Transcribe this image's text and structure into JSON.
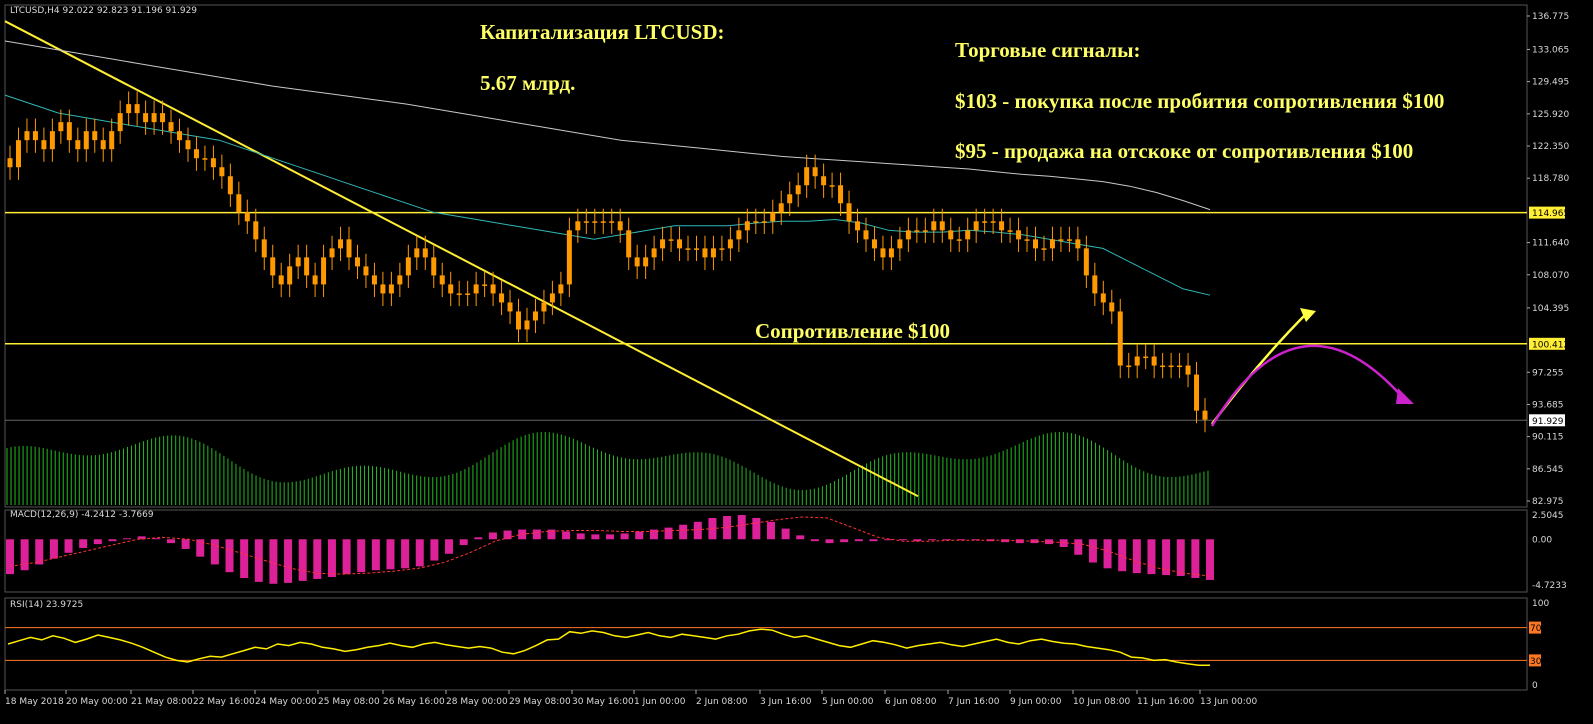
{
  "symbol_header": "LTCUSD,H4  92.022 92.823 91.196 91.929",
  "macd_header": "MACD(12,26,9) -4.2412 -3.7669",
  "rsi_header": "RSI(14) 23.9725",
  "annotations": {
    "cap_title": "Капитализация LTCUSD:",
    "cap_value": "5.67 млрд.",
    "signals_title": "Торговые сигналы:",
    "signal_buy": "$103 -  покупка после пробития сопротивления $100",
    "signal_sell": "$95 - продажа на отскоке от сопротивления $100",
    "resistance_label": "Сопротивление $100"
  },
  "colors": {
    "background": "#000000",
    "candle": "#ff9900",
    "volume": "#22bb22",
    "ma_fast": "#2fb8b8",
    "ma_slow": "#c8c8c8",
    "level_line": "#ffee33",
    "trendline": "#ffee33",
    "macd_hist": "#dd2299",
    "macd_signal": "#ff3333",
    "rsi_line": "#ffee00",
    "rsi_levels": "#ff7722",
    "arrow_up": "#ffff44",
    "arrow_down": "#cc22cc",
    "grid": "#333333"
  },
  "chart_data": [
    {
      "type": "candlestick",
      "title": "LTCUSD,H4",
      "header_ohlc": {
        "open": 92.022,
        "high": 92.823,
        "low": 91.196,
        "close": 91.929
      },
      "y_ticks": [
        "136.775",
        "133.065",
        "129.495",
        "125.920",
        "122.350",
        "118.780",
        "114.965",
        "111.640",
        "108.070",
        "104.395",
        "100.412",
        "97.255",
        "93.685",
        "91.929",
        "90.115",
        "86.545",
        "82.975"
      ],
      "ylim": [
        82.975,
        136.775
      ],
      "x_ticks": [
        "18 May 2018",
        "20 May 00:00",
        "21 May 08:00",
        "22 May 16:00",
        "24 May 00:00",
        "25 May 08:00",
        "26 May 16:00",
        "28 May 00:00",
        "29 May 08:00",
        "30 May 16:00",
        "1 Jun 00:00",
        "2 Jun 08:00",
        "3 Jun 16:00",
        "5 Jun 00:00",
        "6 Jun 08:00",
        "7 Jun 16:00",
        "9 Jun 00:00",
        "10 Jun 08:00",
        "11 Jun 16:00",
        "13 Jun 00:00"
      ],
      "close_series": [
        120,
        123,
        124,
        123,
        122,
        124,
        125,
        123,
        122,
        124,
        123,
        122,
        124,
        126,
        127,
        126,
        125,
        126,
        125,
        124,
        123,
        122,
        121,
        121,
        120,
        119,
        117,
        115,
        114,
        112,
        110,
        108,
        107,
        109,
        110,
        108,
        107,
        110,
        111,
        112,
        110,
        109,
        108,
        107,
        106,
        107,
        108,
        110,
        111,
        110,
        108,
        107,
        106,
        106,
        106,
        107,
        107,
        106,
        105,
        104,
        102,
        103,
        104,
        105,
        106,
        107,
        113,
        114,
        114,
        114,
        114,
        114,
        113,
        110,
        109,
        110,
        111,
        112,
        112,
        111,
        111,
        111,
        110,
        111,
        111,
        112,
        113,
        114,
        114,
        114,
        115,
        116,
        117,
        118,
        120,
        119,
        118,
        118,
        116,
        114,
        113,
        112,
        111,
        110,
        111,
        112,
        113,
        113,
        113,
        114,
        113,
        112,
        112,
        113,
        114,
        114,
        114,
        113,
        113,
        112,
        112,
        111,
        111,
        112,
        112,
        112,
        111,
        108,
        106,
        105,
        104,
        98,
        98,
        99,
        99,
        98,
        98,
        98,
        98,
        97,
        93,
        92
      ],
      "ma_fast_series": [
        128,
        127,
        126,
        125.5,
        125,
        124.5,
        124,
        123.5,
        123,
        122,
        121,
        120,
        119,
        118,
        117,
        116,
        115,
        114.5,
        114,
        113.5,
        113,
        112.5,
        112,
        112.5,
        113,
        113.5,
        113.5,
        113.5,
        113.8,
        114,
        114,
        114.2,
        113.8,
        113,
        112.8,
        112.8,
        113,
        112.8,
        112.5,
        112,
        111.5,
        111,
        109.5,
        108,
        106.5,
        105.8
      ],
      "ma_slow_series": [
        134,
        133.5,
        133,
        132.5,
        132,
        131.5,
        131,
        130.5,
        130,
        129.5,
        129,
        128.6,
        128.2,
        127.8,
        127.4,
        127,
        126.5,
        126,
        125.5,
        125,
        124.5,
        124,
        123.5,
        123,
        122.7,
        122.4,
        122.1,
        121.8,
        121.5,
        121.2,
        121,
        120.8,
        120.6,
        120.4,
        120.2,
        120,
        119.8,
        119.5,
        119.2,
        119,
        118.7,
        118.4,
        117.9,
        117.2,
        116.3,
        115.3
      ],
      "horizontal_levels": [
        114.965,
        100.412
      ],
      "price_badges": [
        "114.965",
        "100.412",
        "91.929"
      ],
      "trendline": {
        "from": {
          "x": "18 May 2018",
          "y": 136.2
        },
        "to": {
          "x": "5 Jun 00:00",
          "y": 83.5
        }
      }
    },
    {
      "type": "bar",
      "title": "MACD(12,26,9)",
      "values_header": [
        -4.2412,
        -3.7669
      ],
      "y_ticks": [
        "2.5045",
        "0.00",
        "-4.7233"
      ],
      "ylim": [
        -4.7233,
        2.5045
      ],
      "histogram": [
        -3.6,
        -3.2,
        -2.6,
        -2,
        -1.4,
        -0.9,
        -0.5,
        -0.2,
        0.1,
        0.3,
        0.1,
        -0.4,
        -1,
        -1.8,
        -2.6,
        -3.4,
        -4,
        -4.4,
        -4.6,
        -4.5,
        -4.3,
        -4.1,
        -3.9,
        -3.6,
        -3.4,
        -3.2,
        -3.1,
        -3,
        -2.8,
        -2.2,
        -1.5,
        -0.6,
        0.2,
        0.7,
        0.9,
        1,
        1,
        1,
        0.8,
        0.6,
        0.5,
        0.5,
        0.6,
        0.8,
        1,
        1.2,
        1.5,
        1.8,
        2.2,
        2.4,
        2.5,
        2.2,
        1.8,
        1.1,
        0.4,
        -0.2,
        -0.4,
        -0.3,
        -0.2,
        -0.2,
        -0.1,
        -0.1,
        -0.2,
        -0.1,
        0,
        0,
        -0.1,
        -0.2,
        -0.3,
        -0.4,
        -0.4,
        -0.5,
        -0.8,
        -1.6,
        -2.4,
        -3,
        -3.3,
        -3.5,
        -3.6,
        -3.7,
        -3.8,
        -4.0,
        -4.2
      ],
      "signal": [
        -2.8,
        -2.4,
        -1.8,
        -1.2,
        -0.6,
        0,
        0.2,
        0,
        -0.6,
        -1.4,
        -2.2,
        -3,
        -3.5,
        -3.6,
        -3.5,
        -3.3,
        -3,
        -2.4,
        -1.4,
        -0.2,
        0.5,
        0.8,
        0.9,
        0.9,
        0.8,
        0.8,
        0.9,
        1,
        1.2,
        1.6,
        2.0,
        2.3,
        2.2,
        1.2,
        0.2,
        -0.2,
        -0.2,
        -0.1,
        -0.1,
        -0.1,
        -0.2,
        -0.3,
        -0.5,
        -1.2,
        -2.2,
        -3,
        -3.5,
        -3.8
      ]
    },
    {
      "type": "line",
      "title": "RSI(14)",
      "value_header": 23.9725,
      "y_ticks": [
        "100",
        "70",
        "30",
        "0"
      ],
      "ylim": [
        0,
        100
      ],
      "levels": [
        70,
        30
      ],
      "values": [
        50,
        54,
        58,
        55,
        60,
        57,
        52,
        56,
        61,
        58,
        55,
        51,
        46,
        40,
        34,
        30,
        28,
        32,
        35,
        34,
        38,
        42,
        46,
        44,
        50,
        48,
        52,
        50,
        46,
        44,
        41,
        43,
        46,
        48,
        51,
        48,
        46,
        50,
        52,
        49,
        47,
        45,
        47,
        45,
        40,
        38,
        42,
        48,
        55,
        56,
        65,
        63,
        66,
        64,
        60,
        58,
        61,
        64,
        60,
        58,
        62,
        60,
        58,
        56,
        60,
        62,
        66,
        68,
        67,
        62,
        58,
        60,
        56,
        52,
        48,
        46,
        50,
        54,
        52,
        49,
        45,
        48,
        50,
        52,
        49,
        47,
        50,
        53,
        56,
        52,
        50,
        54,
        56,
        53,
        51,
        50,
        47,
        45,
        43,
        40,
        34,
        33,
        30,
        31,
        28,
        26,
        24,
        24
      ]
    }
  ]
}
